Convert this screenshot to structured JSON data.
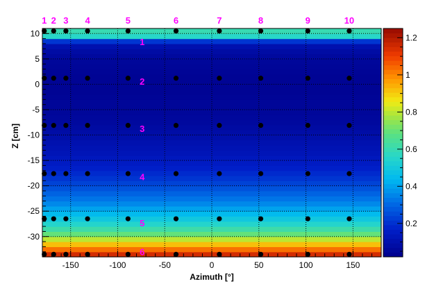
{
  "chart_data": {
    "type": "heatmap",
    "title": "",
    "xlabel": "Azimuth [°]",
    "ylabel": "Z [cm]",
    "xlim": [
      -180,
      180
    ],
    "ylim": [
      -34,
      11
    ],
    "zlim": [
      0.02,
      1.25
    ],
    "x_ticks": [
      -150,
      -100,
      -50,
      0,
      50,
      100,
      150
    ],
    "y_ticks": [
      10,
      5,
      0,
      -5,
      -10,
      -15,
      -20,
      -25,
      -30
    ],
    "z_ticks": [
      0.2,
      0.4,
      0.6,
      0.8,
      1,
      1.2
    ],
    "grid": true,
    "colormap": "rainbow",
    "profile_z": [
      -34,
      -33,
      -32,
      -31,
      -30,
      -29,
      -28,
      -27,
      -26,
      -25,
      -24,
      -23,
      -22,
      -21,
      -20,
      -19,
      -18,
      -17,
      -16,
      -15,
      -14,
      -13,
      -12,
      -11,
      -10,
      -9,
      -8,
      -7,
      -6,
      -5,
      -4,
      -3,
      -2,
      -1,
      0,
      1,
      2,
      3,
      4,
      5,
      6,
      7,
      8,
      9,
      10,
      11
    ],
    "profile_value": [
      1.22,
      1.08,
      0.98,
      0.86,
      0.74,
      0.65,
      0.58,
      0.52,
      0.47,
      0.42,
      0.38,
      0.34,
      0.31,
      0.28,
      0.25,
      0.22,
      0.2,
      0.18,
      0.16,
      0.15,
      0.13,
      0.12,
      0.11,
      0.1,
      0.09,
      0.08,
      0.07,
      0.06,
      0.06,
      0.05,
      0.05,
      0.05,
      0.04,
      0.04,
      0.04,
      0.04,
      0.04,
      0.05,
      0.05,
      0.06,
      0.07,
      0.09,
      0.12,
      0.3,
      0.82,
      0.38
    ],
    "probe_azimuths": [
      -178,
      -168,
      -155,
      -132,
      -89,
      -38,
      8,
      52,
      102,
      146
    ],
    "probe_z": [
      10.5,
      1.2,
      -8.1,
      -17.6,
      -26.5,
      -33.5
    ],
    "column_labels": [
      "1",
      "2",
      "3",
      "4",
      "5",
      "6",
      "7",
      "8",
      "9",
      "10"
    ],
    "row_labels": [
      "1",
      "2",
      "3",
      "4",
      "5",
      "6"
    ],
    "row_label_z": [
      8.4,
      0.6,
      -8.7,
      -18.2,
      -27.3,
      -33.0
    ],
    "label_color": "#ff00ff",
    "marker_color": "#000000",
    "grid_color": "#000000"
  }
}
